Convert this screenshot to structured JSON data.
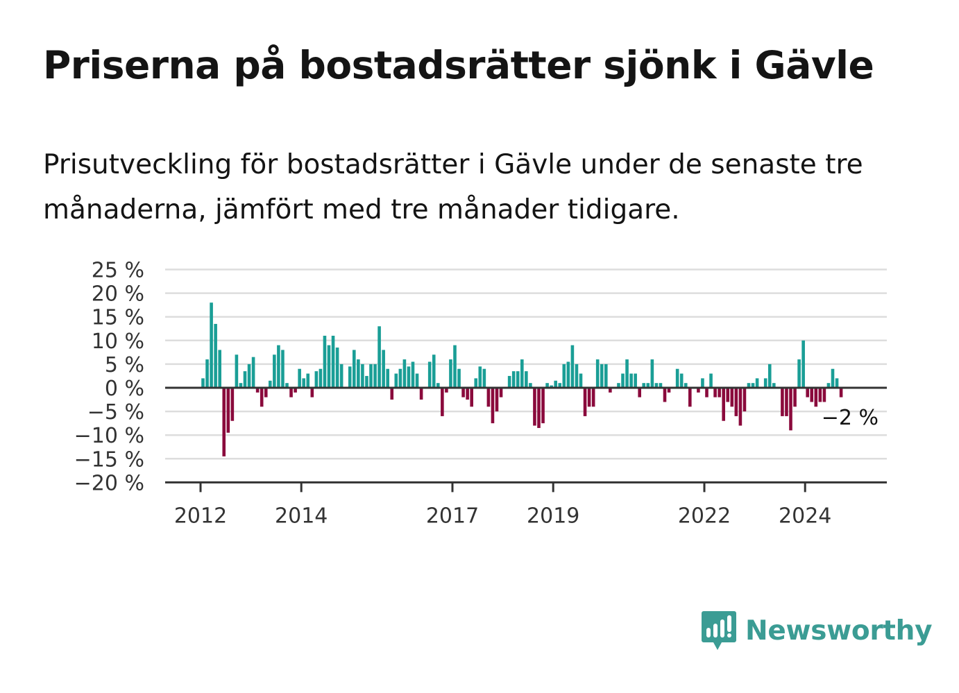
{
  "title": "Priserna på bostadsrätter sjönk i Gävle",
  "subtitle": "Prisutveckling för bostadsrätter i Gävle under de senaste tre månaderna, jämfört med tre månader tidigare.",
  "colors": {
    "positive": "#1a9e96",
    "negative": "#8a0a3c",
    "grid": "#dddddd",
    "axis": "#333333"
  },
  "logo": {
    "text": "Newsworthy",
    "icon": "newsworthy-logo-icon"
  },
  "chart_data": {
    "type": "bar",
    "title": "",
    "xlabel": "",
    "ylabel": "",
    "ylim": [
      -20,
      25
    ],
    "y_ticks": [
      25,
      20,
      15,
      10,
      5,
      0,
      -5,
      -10,
      -15,
      -20
    ],
    "y_tick_labels": [
      "25 %",
      "20 %",
      "15 %",
      "10 %",
      "5 %",
      "0 %",
      "−5 %",
      "−10 %",
      "−15 %",
      "−20 %"
    ],
    "x_ticks": [
      "2012",
      "2014",
      "2017",
      "2019",
      "2022",
      "2024"
    ],
    "grid": true,
    "start": "2012-01",
    "last_value_label": "−2 %",
    "values": [
      2,
      6,
      18,
      13.5,
      8,
      -14.5,
      -9.5,
      -7,
      7,
      1,
      3.5,
      5,
      6.5,
      -1,
      -4,
      -2,
      1.5,
      7,
      9,
      8,
      1,
      -2,
      -1,
      4,
      2,
      3,
      -2,
      3.5,
      4,
      11,
      9,
      11,
      8.5,
      5,
      0,
      4.5,
      8,
      6,
      5,
      2.5,
      5,
      5,
      13,
      8,
      4,
      -2.5,
      3,
      4,
      6,
      4.5,
      5.5,
      3,
      -2.5,
      0,
      5.5,
      7,
      1,
      -6,
      -1,
      6,
      9,
      4,
      -2,
      -2.5,
      -4,
      2,
      4.5,
      4,
      -4,
      -7.5,
      -5,
      -2,
      0,
      2.5,
      3.5,
      3.5,
      6,
      3.5,
      1,
      -8,
      -8.5,
      -7.5,
      1,
      0.5,
      1.5,
      1,
      5,
      5.5,
      9,
      5,
      3,
      -6,
      -4,
      -4,
      6,
      5,
      5,
      -1,
      0,
      1,
      3,
      6,
      3,
      3,
      -2,
      1,
      1,
      6,
      1,
      1,
      -3,
      -1,
      0,
      4,
      3,
      1,
      -4,
      0,
      -1,
      2,
      -2,
      3,
      -2,
      -2,
      -7,
      -3,
      -4,
      -6,
      -8,
      -5,
      1,
      1,
      2,
      0,
      2,
      5,
      1,
      0,
      -6,
      -6,
      -9,
      -4,
      6,
      10,
      -2,
      -3,
      -4,
      -3,
      -3,
      1,
      4,
      2,
      -2
    ]
  }
}
